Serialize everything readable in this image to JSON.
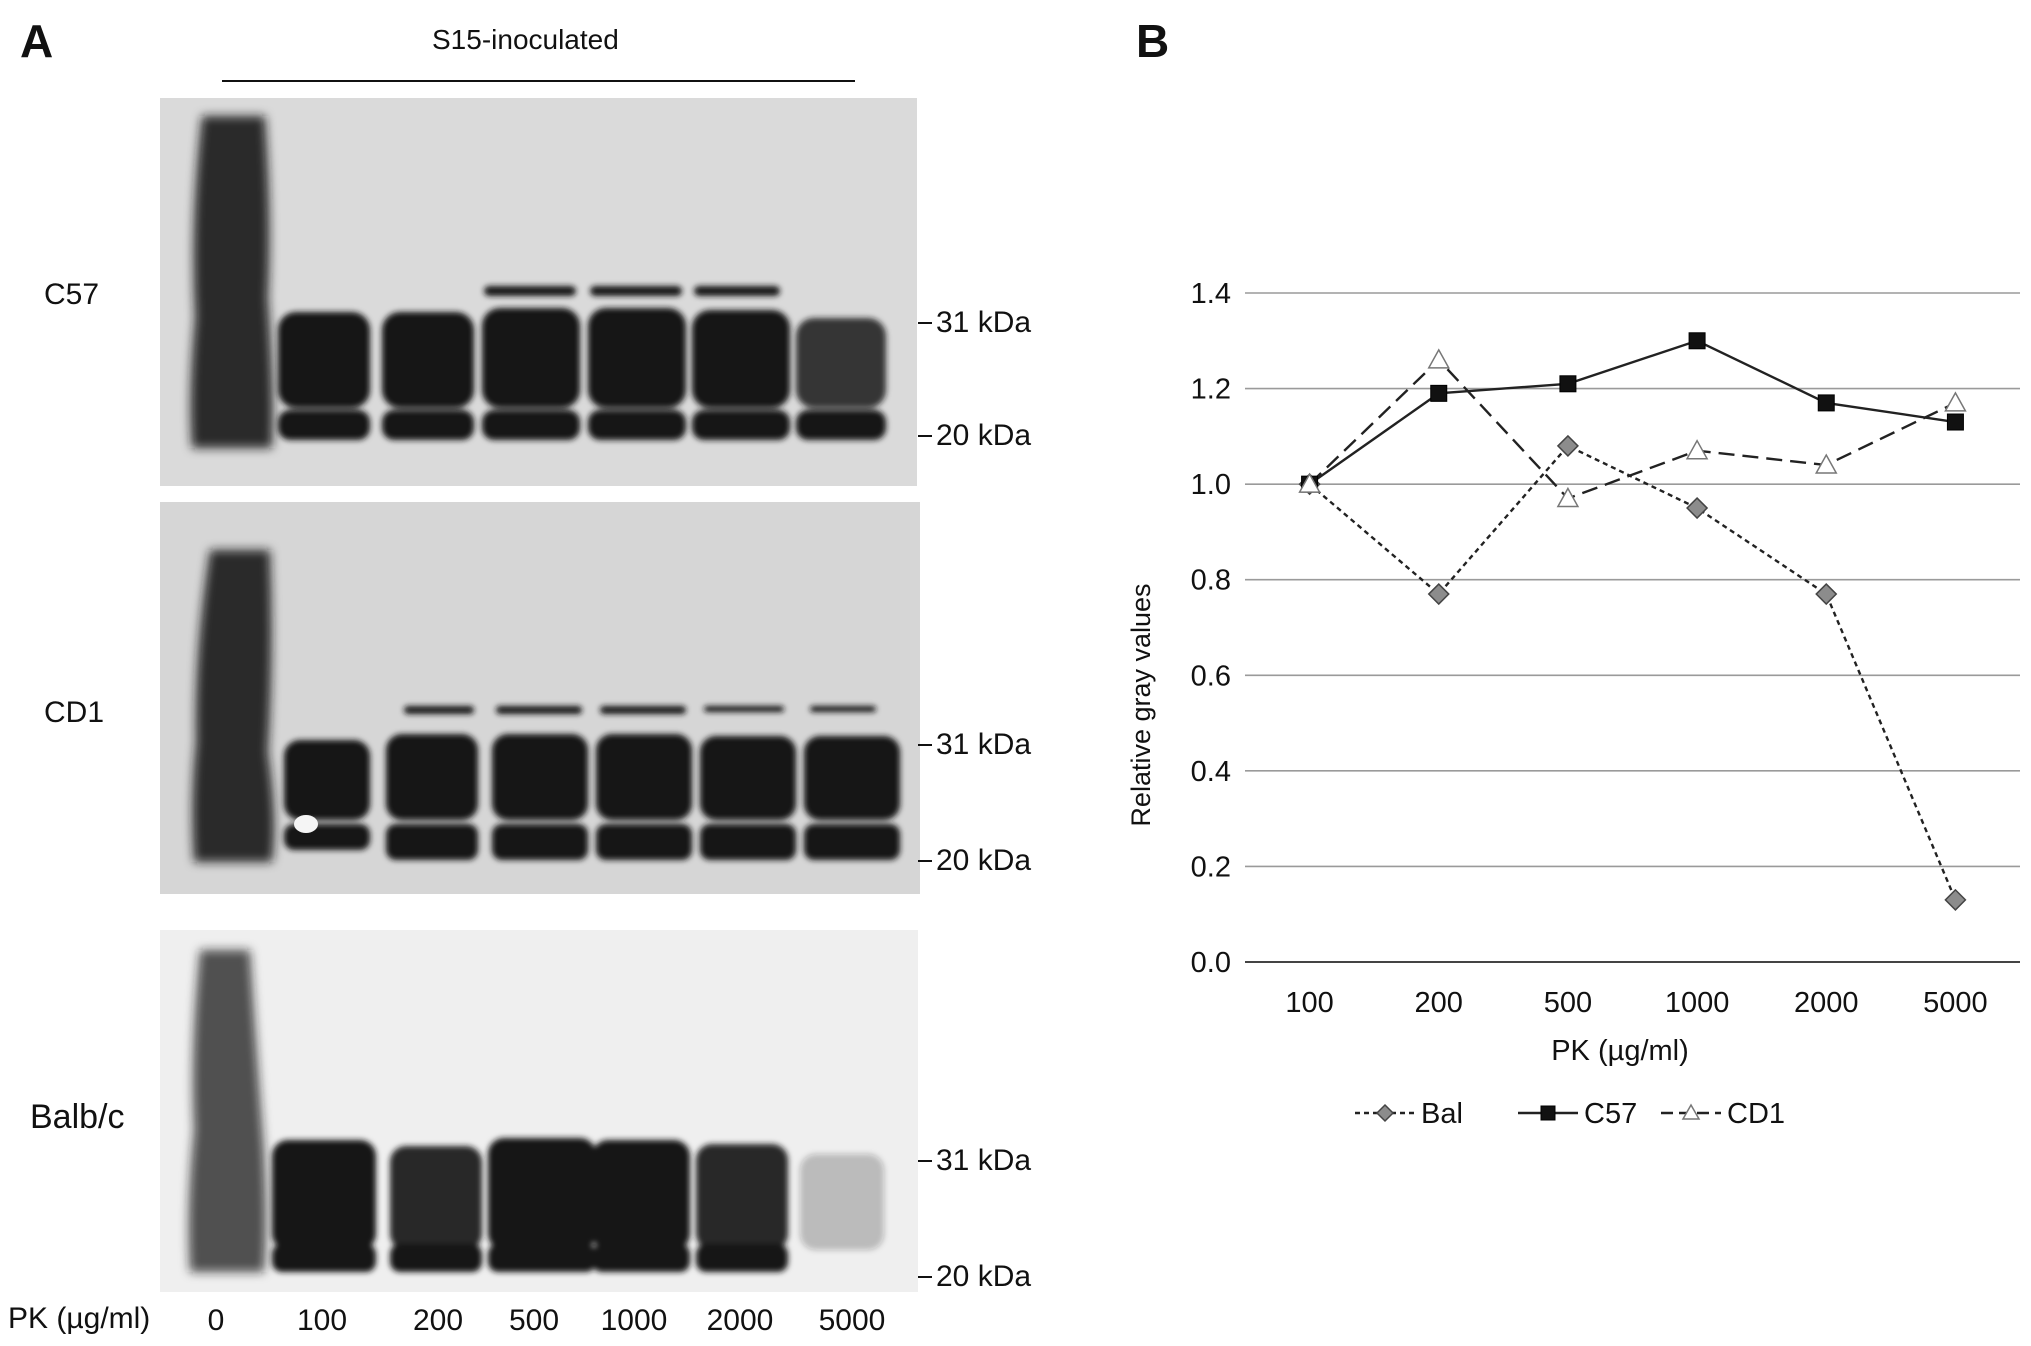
{
  "panel_a": {
    "label": "A",
    "condition": "S15-inoculated",
    "blots": [
      {
        "strain": "C57",
        "marker_high": "31 kDa",
        "marker_low": "20 kDa"
      },
      {
        "strain": "CD1",
        "marker_high": "31 kDa",
        "marker_low": "20 kDa"
      },
      {
        "strain": "Balb/c",
        "marker_high": "31 kDa",
        "marker_low": "20 kDa"
      }
    ],
    "pk_label": "PK (µg/ml)",
    "lanes": [
      "0",
      "100",
      "200",
      "500",
      "1000",
      "2000",
      "5000"
    ],
    "colors": {
      "c57_bg": "#dadada",
      "cd1_bg": "#d6d6d6",
      "balb_bg": "#efefef",
      "band": "#151515"
    }
  },
  "panel_b": {
    "label": "B"
  },
  "chart_data": {
    "type": "line",
    "title": "",
    "xlabel": "PK (µg/ml)",
    "ylabel": "Relative gray values",
    "categories": [
      "100",
      "200",
      "500",
      "1000",
      "2000",
      "5000"
    ],
    "ylim": [
      0,
      1.4
    ],
    "yticks": [
      "0.0",
      "0.2",
      "0.4",
      "0.6",
      "0.8",
      "1.0",
      "1.2",
      "1.4"
    ],
    "grid": true,
    "legend_position": "bottom",
    "series": [
      {
        "name": "Bal",
        "marker": "diamond",
        "dash": "short-dash",
        "color": "#8c8c8c",
        "values": [
          1.0,
          0.77,
          1.08,
          0.95,
          0.77,
          0.13
        ]
      },
      {
        "name": "C57",
        "marker": "square",
        "dash": "solid",
        "color": "#111111",
        "values": [
          1.0,
          1.19,
          1.21,
          1.3,
          1.17,
          1.13
        ]
      },
      {
        "name": "CD1",
        "marker": "triangle",
        "dash": "long-dash",
        "color": "#ffffff",
        "values": [
          1.0,
          1.26,
          0.97,
          1.07,
          1.04,
          1.17
        ]
      }
    ]
  }
}
